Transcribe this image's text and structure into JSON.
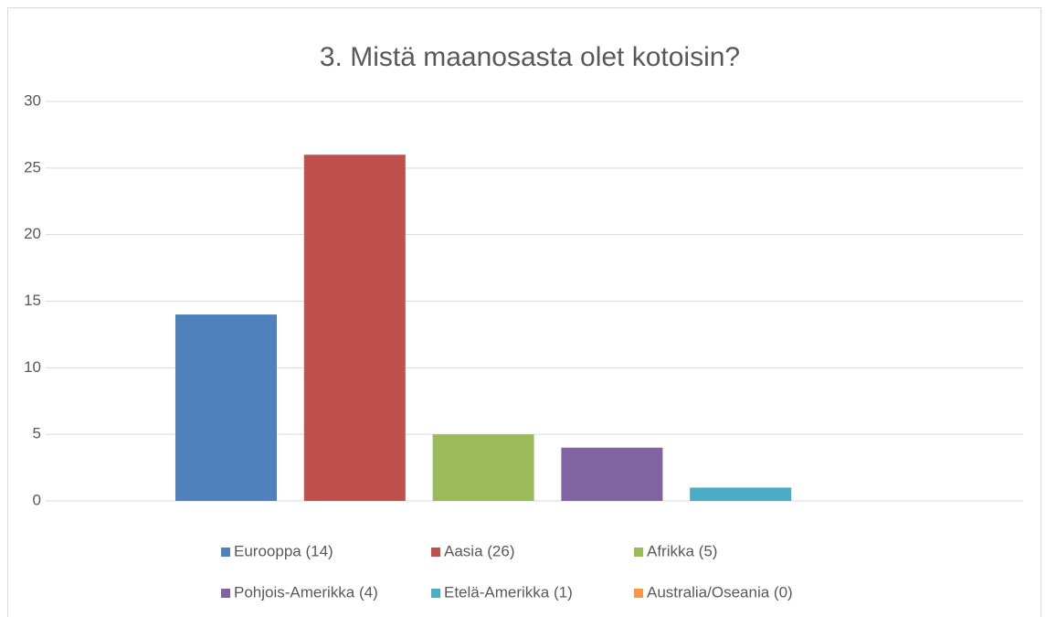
{
  "chart_data": {
    "type": "bar",
    "title": "3. Mistä maanosasta olet kotoisin?",
    "categories": [
      null
    ],
    "series": [
      {
        "name": "Eurooppa (14)",
        "color": "#4f81bd",
        "values": [
          14
        ]
      },
      {
        "name": "Aasia (26)",
        "color": "#c0504d",
        "values": [
          26
        ]
      },
      {
        "name": "Afrikka (5)",
        "color": "#9bbb59",
        "values": [
          5
        ]
      },
      {
        "name": "Pohjois-Amerikka (4)",
        "color": "#8064a2",
        "values": [
          4
        ]
      },
      {
        "name": "Etelä-Amerikka (1)",
        "color": "#4bacc6",
        "values": [
          1
        ]
      },
      {
        "name": "Australia/Oseania (0)",
        "color": "#f79646",
        "values": [
          0
        ]
      }
    ],
    "ylim": [
      0,
      30
    ],
    "yticks": [
      0,
      5,
      10,
      15,
      20,
      25,
      30
    ],
    "grid": true,
    "legend": "bottom"
  }
}
